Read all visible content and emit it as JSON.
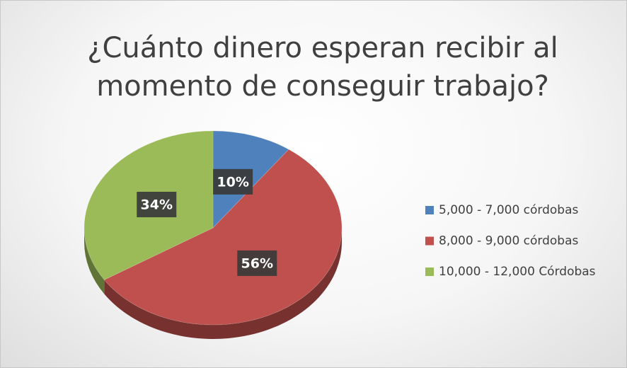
{
  "chart_data": {
    "type": "pie",
    "title": "¿Cuánto dinero esperan recibir al momento de conseguir trabajo?",
    "categories": [
      "5,000 - 7,000 córdobas",
      "8,000 - 9,000 córdobas",
      "10,000 - 12,000 Córdobas"
    ],
    "values": [
      10,
      56,
      34
    ],
    "value_labels": [
      "10%",
      "56%",
      "34%"
    ],
    "colors": [
      "#4f81bd",
      "#c0504d",
      "#9bbb59"
    ],
    "legend": "right"
  }
}
